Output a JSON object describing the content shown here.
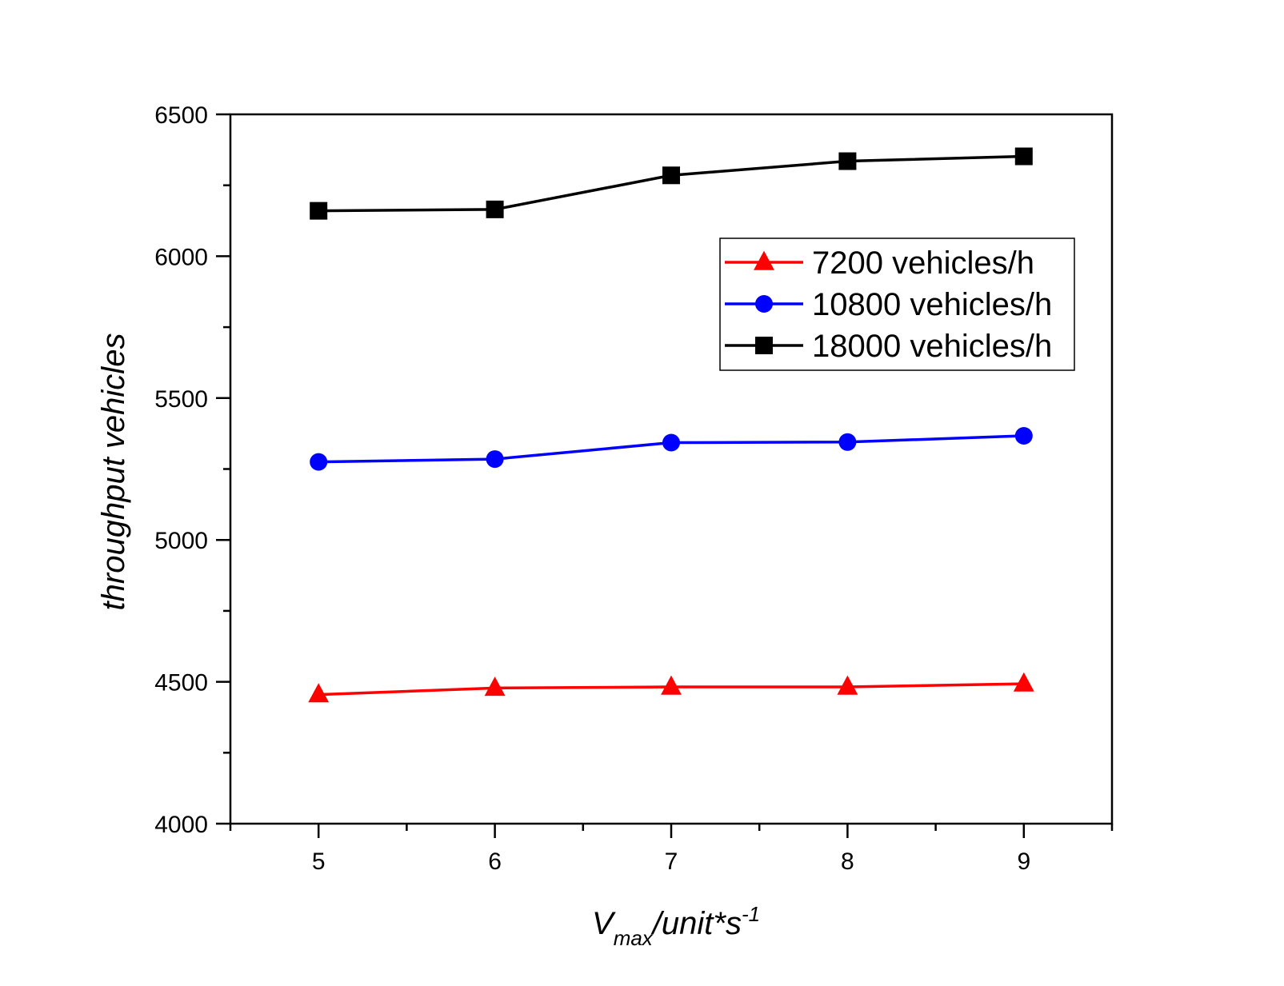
{
  "chart_data": {
    "type": "line",
    "title": "",
    "xlabel": {
      "main": "V",
      "subscript": "max",
      "rest": "/unit*s",
      "superscript": "-1"
    },
    "ylabel": "throughput vehicles",
    "xlim": [
      4.5,
      9.5
    ],
    "ylim": [
      4000,
      6500
    ],
    "x_ticks": [
      5,
      6,
      7,
      8,
      9
    ],
    "y_ticks": [
      4000,
      4500,
      5000,
      5500,
      6000,
      6500
    ],
    "x_minor_ticks": [
      4.5,
      5.5,
      6.5,
      7.5,
      8.5,
      9.5
    ],
    "y_minor_ticks": [
      4250,
      4750,
      5250,
      5750,
      6250
    ],
    "x": [
      5,
      6,
      7,
      8,
      9
    ],
    "legend_position": "top-right",
    "grid": false,
    "series": [
      {
        "name": "7200 vehicles/h",
        "color": "#ff0000",
        "marker": "triangle",
        "values": [
          4455,
          4478,
          4482,
          4482,
          4493
        ]
      },
      {
        "name": "10800 vehicles/h",
        "color": "#0000ff",
        "marker": "circle",
        "values": [
          5275,
          5285,
          5343,
          5345,
          5367
        ]
      },
      {
        "name": "18000 vehicles/h",
        "color": "#000000",
        "marker": "square",
        "values": [
          6160,
          6165,
          6285,
          6335,
          6352
        ]
      }
    ]
  }
}
